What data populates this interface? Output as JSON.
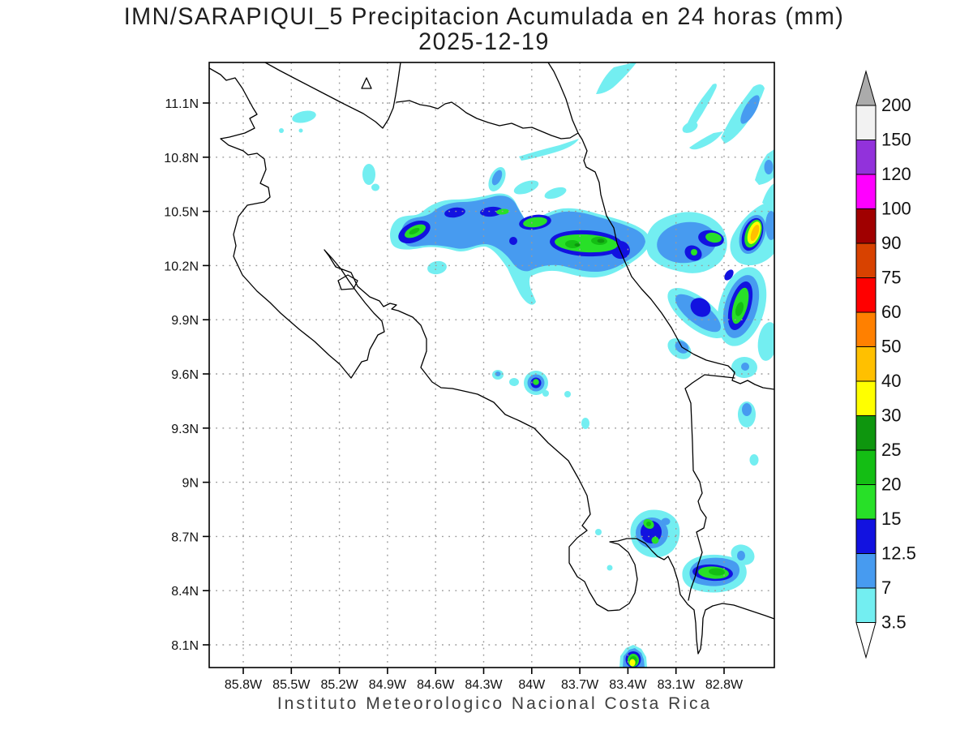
{
  "title": {
    "line1": "IMN/SARAPIQUI_5 Precipitacion Acumulada en 24 horas (mm)",
    "line2": "2025-12-19"
  },
  "footer": "Instituto Meteorologico Nacional Costa Rica",
  "axes": {
    "lat_labels": [
      "11.1N",
      "10.8N",
      "10.5N",
      "10.2N",
      "9.9N",
      "9.6N",
      "9.3N",
      "9N",
      "8.7N",
      "8.4N",
      "8.1N"
    ],
    "lon_labels": [
      "85.8W",
      "85.5W",
      "85.2W",
      "84.9W",
      "84.6W",
      "84.3W",
      "84W",
      "83.7W",
      "83.4W",
      "83.1W",
      "82.8W"
    ]
  },
  "colorbar": {
    "labels_top_to_bottom": [
      "200",
      "150",
      "120",
      "100",
      "90",
      "75",
      "60",
      "50",
      "40",
      "30",
      "25",
      "20",
      "15",
      "12.5",
      "7",
      "3.5"
    ],
    "colors_top_to_bottom": [
      "#f2f2f2",
      "#9232db",
      "#ff00ff",
      "#a00000",
      "#d84200",
      "#ff0000",
      "#ff8000",
      "#ffc000",
      "#ffff00",
      "#0e960e",
      "#14be14",
      "#28e028",
      "#1212e0",
      "#479bf0",
      "#73eef1"
    ],
    "arrow_top_color": "#ababab",
    "arrow_bottom_color": "#ffffff"
  },
  "chart_data": {
    "type": "heatmap",
    "subtype": "filled-contour-precipitation-map",
    "title": "IMN/SARAPIQUI_5 Precipitacion Acumulada en 24 horas (mm)",
    "date": "2025-12-19",
    "region": "Costa Rica",
    "lon_range_deg_west": [
      86.0,
      82.5
    ],
    "lat_range_deg_north": [
      7.97,
      11.32
    ],
    "grid": "dotted graticule every 0.3 degrees",
    "units": "mm",
    "levels_mm": [
      3.5,
      7,
      12.5,
      15,
      20,
      25,
      30,
      40,
      50,
      60,
      75,
      90,
      100,
      120,
      150,
      200
    ],
    "palette_low_to_high": [
      "#73eef1",
      "#479bf0",
      "#1212e0",
      "#28e028",
      "#14be14",
      "#0e960e",
      "#ffff00",
      "#ffc000",
      "#ff8000",
      "#ff0000",
      "#d84200",
      "#a00000",
      "#ff00ff",
      "#9232db",
      "#f2f2f2"
    ],
    "legend_position": "right vertical colorbar with overflow arrows",
    "max_cells": [
      {
        "lon_w": 84.73,
        "lat_n": 10.39,
        "peak_mm": "20-25",
        "note": "west lobe of main band"
      },
      {
        "lon_w": 83.65,
        "lat_n": 10.32,
        "peak_mm": "25-30",
        "note": "large green core of main east-west band"
      },
      {
        "lon_w": 82.61,
        "lat_n": 10.38,
        "peak_mm": "40-50",
        "note": "strongest cell, near Caribbean coast right edge"
      },
      {
        "lon_w": 82.7,
        "lat_n": 9.97,
        "peak_mm": "20-25",
        "note": "elongated coastal cell"
      },
      {
        "lon_w": 83.97,
        "lat_n": 9.55,
        "peak_mm": "15-20",
        "note": "small isolated cell"
      },
      {
        "lon_w": 83.26,
        "lat_n": 8.72,
        "peak_mm": "15-20",
        "note": "small twin-core cell"
      },
      {
        "lon_w": 82.87,
        "lat_n": 8.5,
        "peak_mm": "20-25",
        "note": "elongated southeast cell"
      },
      {
        "lon_w": 83.37,
        "lat_n": 8.0,
        "peak_mm": "30-40",
        "note": "cell clipped at bottom edge"
      }
    ]
  }
}
